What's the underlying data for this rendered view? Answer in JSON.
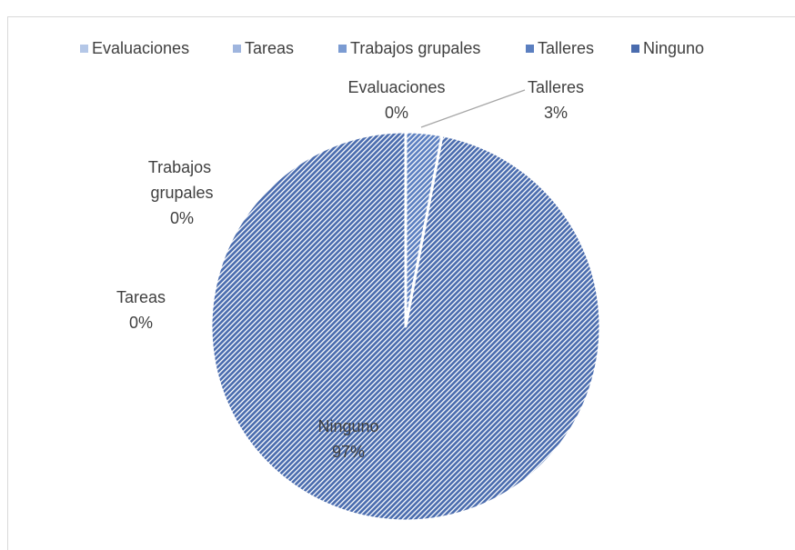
{
  "chart_data": {
    "type": "pie",
    "categories": [
      "Evaluaciones",
      "Tareas",
      "Trabajos grupales",
      "Talleres",
      "Ninguno"
    ],
    "values": [
      0,
      0,
      0,
      3,
      97
    ],
    "value_labels": [
      "0%",
      "0%",
      "0%",
      "3%",
      "97%"
    ],
    "colors": [
      "#b4c7e7",
      "#9fb5de",
      "#7b9bd2",
      "#5b7fc0",
      "#4a6cae"
    ],
    "legend": "top"
  }
}
